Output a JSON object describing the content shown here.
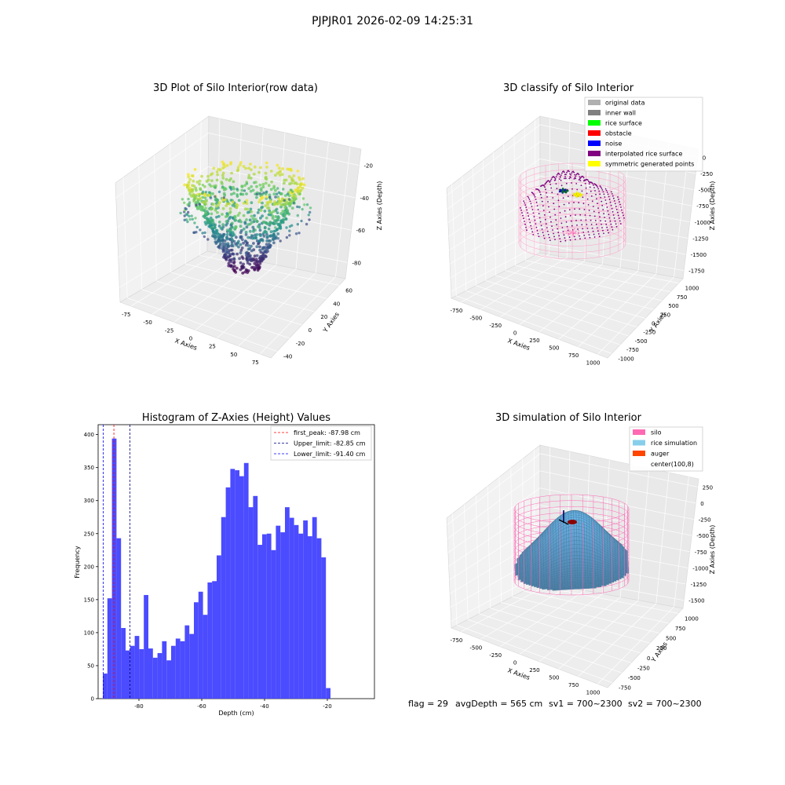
{
  "suptitle": "PJPJR01 2026-02-09 14:25:31",
  "footer": {
    "flag": "flag = 29",
    "avg_depth": "avgDepth = 565 cm",
    "sv1": "sv1 = 700~2300",
    "sv2": "sv2 = 700~2300"
  },
  "chart_data": [
    {
      "type": "scatter",
      "projection": "3d",
      "title": "3D Plot of Silo Interior(row data)",
      "xlabel": "X Axies",
      "ylabel": "Y Axies",
      "zlabel": "Z Axies (Depth)",
      "xticks": [
        "-75",
        "-50",
        "-25",
        "0",
        "25",
        "50",
        "75"
      ],
      "yticks": [
        "-40",
        "-20",
        "0",
        "20",
        "40",
        "60"
      ],
      "zticks": [
        "-20",
        "-40",
        "-60",
        "-80"
      ],
      "xlim": [
        -90,
        80
      ],
      "ylim": [
        -45,
        65
      ],
      "zlim": [
        -95,
        -5
      ],
      "colormap": "viridis",
      "description": "Cone-shaped point cloud, deep (purple) at bottom center rising to shallow (yellow) ring"
    },
    {
      "type": "scatter",
      "projection": "3d",
      "title": "3D classify of Silo Interior",
      "xlabel": "X Axies",
      "ylabel": "Y Axies",
      "zlabel": "Z Axies (Depth)",
      "xticks": [
        "-750",
        "-500",
        "-250",
        "0",
        "250",
        "500",
        "750",
        "1000"
      ],
      "yticks": [
        "-1000",
        "-750",
        "-500",
        "-250",
        "0",
        "250",
        "500",
        "750",
        "1000"
      ],
      "zticks": [
        "0",
        "-250",
        "-500",
        "-750",
        "-1000",
        "-1250",
        "-1500",
        "-1750"
      ],
      "legend_position": "top-right",
      "legend": [
        {
          "label": "original data",
          "color": "#b0b0b0"
        },
        {
          "label": "inner wall",
          "color": "#808080"
        },
        {
          "label": "rice surface",
          "color": "#00ff00"
        },
        {
          "label": "obstacle",
          "color": "#ff0000"
        },
        {
          "label": "noise",
          "color": "#0000ff"
        },
        {
          "label": "interpolated rice surface",
          "color": "#800080"
        },
        {
          "label": "symmetric generated points",
          "color": "#ffff00"
        }
      ]
    },
    {
      "type": "bar",
      "title": "Histogram of Z-Axies (Height) Values",
      "xlabel": "Depth (cm)",
      "ylabel": "Frequency",
      "xlim": [
        -93,
        -5
      ],
      "ylim": [
        0,
        415
      ],
      "xticks": [
        -80,
        -60,
        -40,
        -20
      ],
      "yticks": [
        0,
        50,
        100,
        150,
        200,
        250,
        300,
        350,
        400
      ],
      "bar_color": "#4b4bff",
      "bin_start": -91.5,
      "bin_width": 1.45,
      "values": [
        38,
        152,
        394,
        243,
        107,
        73,
        80,
        95,
        75,
        157,
        76,
        62,
        69,
        87,
        58,
        80,
        91,
        87,
        111,
        98,
        146,
        162,
        127,
        176,
        178,
        217,
        275,
        320,
        348,
        346,
        337,
        357,
        290,
        307,
        233,
        249,
        250,
        225,
        262,
        252,
        290,
        274,
        263,
        250,
        270,
        246,
        275,
        243,
        214,
        16
      ],
      "vlines": [
        {
          "x": -87.98,
          "label": "first_peak: -87.98 cm",
          "color": "#ff0000"
        },
        {
          "x": -82.85,
          "label": "Upper_limit: -82.85 cm",
          "color": "#000080"
        },
        {
          "x": -91.4,
          "label": "Lower_limit: -91.40 cm",
          "color": "#0000ff"
        }
      ],
      "legend_position": "top-right"
    },
    {
      "type": "surface",
      "projection": "3d",
      "title": "3D simulation of Silo Interior",
      "xlabel": "X Axies",
      "ylabel": "Y Axies",
      "zlabel": "Z Axies (Depth)",
      "xticks": [
        "-750",
        "-500",
        "-250",
        "0",
        "250",
        "500",
        "750",
        "1000"
      ],
      "yticks": [
        "-750",
        "-500",
        "-250",
        "0",
        "250",
        "500",
        "750",
        "1000"
      ],
      "zticks": [
        "250",
        "0",
        "-250",
        "-500",
        "-750",
        "-1000",
        "-1250",
        "-1500"
      ],
      "legend_position": "top-right",
      "legend": [
        {
          "label": "silo",
          "color": "#ff69b4"
        },
        {
          "label": "rice simulation",
          "color": "#87ceeb"
        },
        {
          "label": "auger",
          "color": "#ff4500"
        },
        {
          "label": "center(100,8)",
          "color": "#ffffff"
        }
      ]
    }
  ]
}
